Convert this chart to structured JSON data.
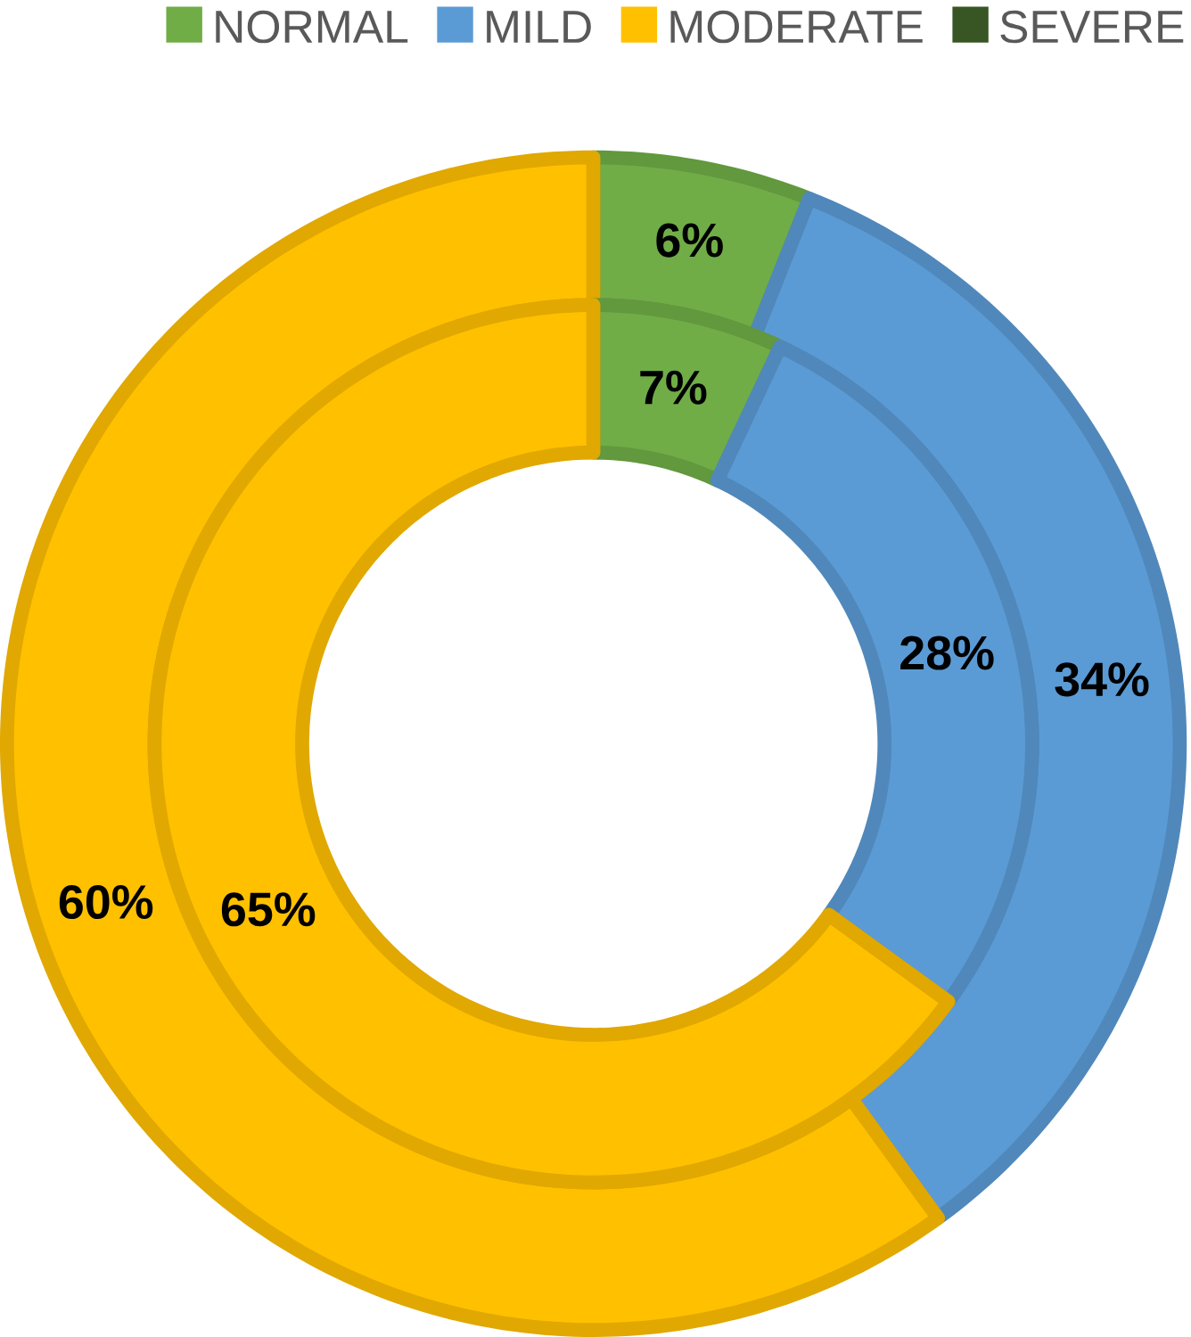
{
  "chart_data": {
    "type": "donut",
    "categories": [
      "NORMAL",
      "MILD",
      "MODERATE",
      "SEVERE"
    ],
    "colors": [
      "#70ad47",
      "#5b9bd5",
      "#ffc000",
      "#375623"
    ],
    "series": [
      {
        "values": [
          6,
          34,
          60,
          0
        ],
        "value_labels": [
          "6%",
          "34%",
          "60%",
          null
        ]
      },
      {
        "values": [
          7,
          28,
          65,
          0
        ],
        "value_labels": [
          "7%",
          "28%",
          "65%",
          null
        ]
      }
    ],
    "legend": "top"
  }
}
